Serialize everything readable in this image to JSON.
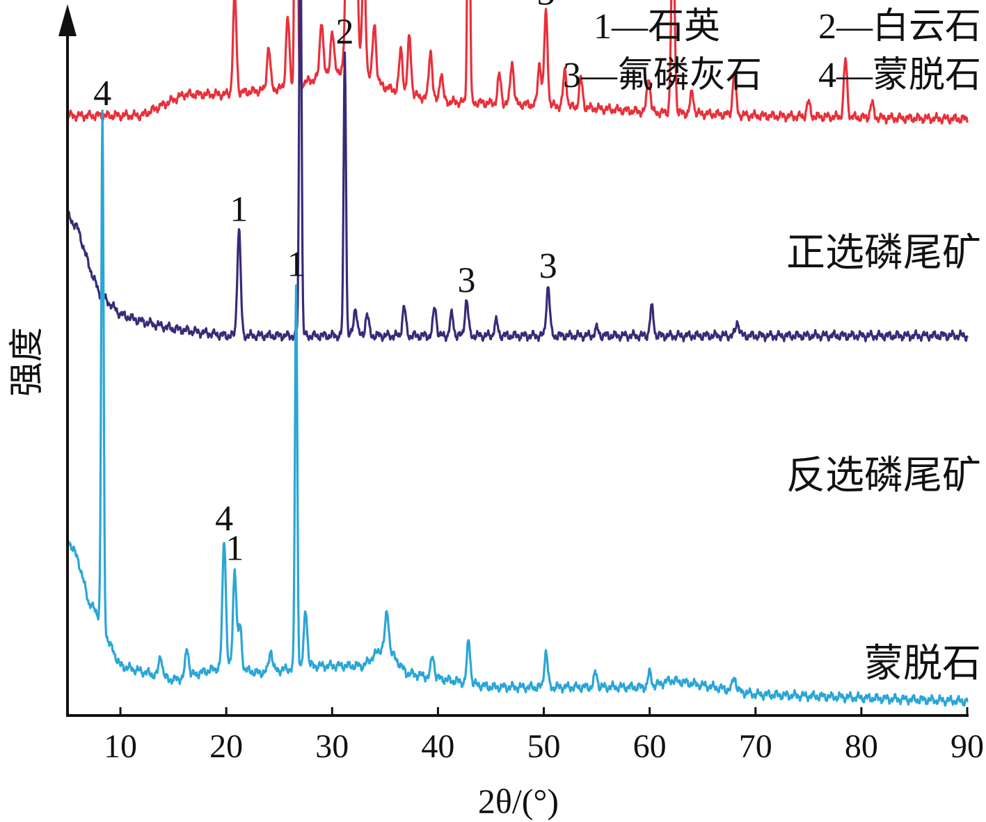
{
  "chart_data": {
    "type": "line",
    "title": "",
    "xlabel": "2θ/(°)",
    "ylabel": "强度",
    "xlim": [
      5,
      90
    ],
    "x_ticks": [
      10,
      20,
      30,
      40,
      50,
      60,
      70,
      80,
      90
    ],
    "y_ticks": [],
    "legend": {
      "placement": "top-right",
      "entries": [
        "1—石英",
        "2—白云石",
        "3—氟磷灰石",
        "4—蒙脱石"
      ]
    },
    "series": [
      {
        "name": "正选磷尾矿",
        "color": "#e8303a",
        "baseline": 0.845,
        "shape": [
          [
            5,
            0
          ],
          [
            12,
            0
          ],
          [
            16,
            0.03
          ],
          [
            20,
            0.03
          ],
          [
            26,
            0.04
          ],
          [
            32,
            0.07
          ],
          [
            35,
            0.04
          ],
          [
            40,
            0.02
          ],
          [
            50,
            0.015
          ],
          [
            60,
            0.005
          ],
          [
            70,
            0.0
          ],
          [
            90,
            -0.005
          ]
        ],
        "peaks": [
          {
            "x": 20.8,
            "h": 0.14,
            "label": "1"
          },
          {
            "x": 26.6,
            "h": 0.96,
            "label": "1"
          },
          {
            "x": 25.8,
            "h": 0.1
          },
          {
            "x": 24.0,
            "h": 0.06
          },
          {
            "x": 29.0,
            "h": 0.08
          },
          {
            "x": 30.0,
            "h": 0.06
          },
          {
            "x": 31.4,
            "h": 0.2
          },
          {
            "x": 31.9,
            "h": 0.26,
            "label": "3"
          },
          {
            "x": 32.3,
            "h": 0.18
          },
          {
            "x": 33.0,
            "h": 0.16
          },
          {
            "x": 34.0,
            "h": 0.08
          },
          {
            "x": 36.5,
            "h": 0.06
          },
          {
            "x": 37.3,
            "h": 0.08
          },
          {
            "x": 39.3,
            "h": 0.07
          },
          {
            "x": 40.3,
            "h": 0.04
          },
          {
            "x": 42.9,
            "h": 0.48,
            "label": "3"
          },
          {
            "x": 45.8,
            "h": 0.04
          },
          {
            "x": 47.0,
            "h": 0.06
          },
          {
            "x": 49.6,
            "h": 0.06
          },
          {
            "x": 50.2,
            "h": 0.13,
            "label": "3"
          },
          {
            "x": 52.0,
            "h": 0.05
          },
          {
            "x": 53.5,
            "h": 0.04
          },
          {
            "x": 59.9,
            "h": 0.05
          },
          {
            "x": 62.2,
            "h": 0.26,
            "label": "3"
          },
          {
            "x": 64.0,
            "h": 0.03
          },
          {
            "x": 68.0,
            "h": 0.06
          },
          {
            "x": 75.0,
            "h": 0.02
          },
          {
            "x": 78.5,
            "h": 0.08
          },
          {
            "x": 81.0,
            "h": 0.02
          }
        ]
      },
      {
        "name": "反选磷尾矿",
        "color": "#3a2a78",
        "baseline": 0.535,
        "shape": [
          [
            5,
            0.17
          ],
          [
            6,
            0.15
          ],
          [
            7,
            0.1
          ],
          [
            8,
            0.06
          ],
          [
            10,
            0.03
          ],
          [
            12,
            0.02
          ],
          [
            15,
            0.01
          ],
          [
            20,
            0.0
          ],
          [
            40,
            0.0
          ],
          [
            90,
            0.0
          ]
        ],
        "peaks": [
          {
            "x": 21.2,
            "h": 0.15,
            "label": "1"
          },
          {
            "x": 27.0,
            "h": 0.6,
            "label": "1"
          },
          {
            "x": 31.2,
            "h": 0.4,
            "label": "2"
          },
          {
            "x": 32.2,
            "h": 0.04
          },
          {
            "x": 33.3,
            "h": 0.03
          },
          {
            "x": 36.8,
            "h": 0.04
          },
          {
            "x": 39.7,
            "h": 0.04
          },
          {
            "x": 41.3,
            "h": 0.03
          },
          {
            "x": 42.7,
            "h": 0.05,
            "label": "3"
          },
          {
            "x": 45.5,
            "h": 0.02
          },
          {
            "x": 50.4,
            "h": 0.07,
            "label": "3"
          },
          {
            "x": 55.0,
            "h": 0.01
          },
          {
            "x": 60.2,
            "h": 0.04
          },
          {
            "x": 68.3,
            "h": 0.02
          }
        ]
      },
      {
        "name": "蒙脱石",
        "color": "#2aa6d6",
        "baseline": 0.02,
        "shape": [
          [
            5,
            0.23
          ],
          [
            6,
            0.2
          ],
          [
            7,
            0.14
          ],
          [
            8,
            0.12
          ],
          [
            9,
            0.08
          ],
          [
            10,
            0.05
          ],
          [
            15,
            0.03
          ],
          [
            20,
            0.05
          ],
          [
            23,
            0.04
          ],
          [
            28,
            0.05
          ],
          [
            33,
            0.05
          ],
          [
            35,
            0.08
          ],
          [
            37,
            0.04
          ],
          [
            45,
            0.02
          ],
          [
            60,
            0.02
          ],
          [
            62,
            0.03
          ],
          [
            70,
            0.01
          ],
          [
            90,
            0.0
          ]
        ],
        "peaks": [
          {
            "x": 8.3,
            "h": 0.72,
            "label": "4"
          },
          {
            "x": 13.8,
            "h": 0.03
          },
          {
            "x": 16.3,
            "h": 0.04
          },
          {
            "x": 19.8,
            "h": 0.18,
            "label": "4"
          },
          {
            "x": 20.8,
            "h": 0.14,
            "label": "1"
          },
          {
            "x": 21.3,
            "h": 0.06
          },
          {
            "x": 24.2,
            "h": 0.03
          },
          {
            "x": 26.6,
            "h": 0.54,
            "label": "1"
          },
          {
            "x": 27.5,
            "h": 0.08
          },
          {
            "x": 35.2,
            "h": 0.05
          },
          {
            "x": 39.5,
            "h": 0.03
          },
          {
            "x": 42.9,
            "h": 0.06
          },
          {
            "x": 50.2,
            "h": 0.05
          },
          {
            "x": 54.9,
            "h": 0.02
          },
          {
            "x": 60.0,
            "h": 0.02
          },
          {
            "x": 68.0,
            "h": 0.02
          }
        ]
      }
    ]
  }
}
